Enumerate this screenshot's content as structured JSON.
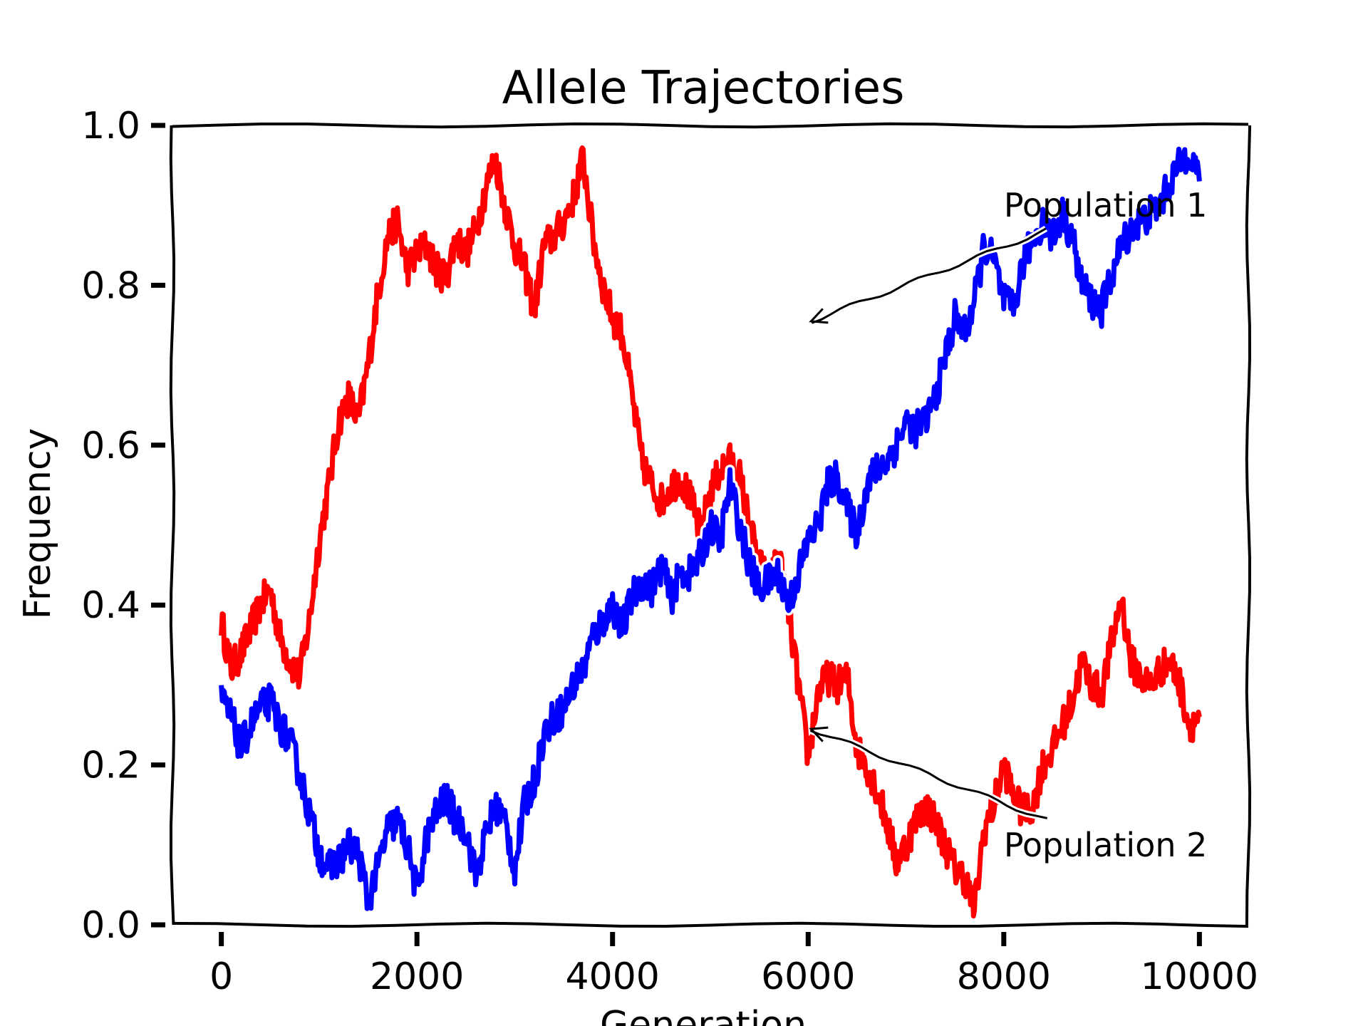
{
  "chart_data": {
    "type": "line",
    "title": "Allele Trajectories",
    "xlabel": "Generation",
    "ylabel": "Frequency",
    "xlim": [
      -500,
      10500
    ],
    "ylim": [
      0.0,
      1.0
    ],
    "xticks": [
      0,
      2000,
      4000,
      6000,
      8000,
      10000
    ],
    "xtick_labels": [
      "0",
      "2000",
      "4000",
      "6000",
      "8000",
      "10000"
    ],
    "yticks": [
      0.0,
      0.2,
      0.4,
      0.6,
      0.8,
      1.0
    ],
    "ytick_labels": [
      "0.0",
      "0.2",
      "0.4",
      "0.6",
      "0.8",
      "1.0"
    ],
    "grid": false,
    "style": "xkcd",
    "series": [
      {
        "color": "#ff0000",
        "x": [
          0,
          100,
          200,
          300,
          400,
          500,
          600,
          700,
          800,
          900,
          1000,
          1100,
          1200,
          1300,
          1400,
          1500,
          1600,
          1700,
          1800,
          1900,
          2000,
          2100,
          2200,
          2300,
          2400,
          2500,
          2600,
          2700,
          2800,
          2900,
          3000,
          3100,
          3200,
          3300,
          3400,
          3500,
          3600,
          3700,
          3800,
          3900,
          4000,
          4100,
          4200,
          4300,
          4400,
          4500,
          4600,
          4700,
          4800,
          4900,
          5000,
          5100,
          5200,
          5300,
          5400,
          5500,
          5600,
          5700,
          5800,
          5900,
          6000,
          6100,
          6200,
          6300,
          6400,
          6500,
          6600,
          6700,
          6800,
          6900,
          7000,
          7100,
          7200,
          7300,
          7400,
          7500,
          7600,
          7700,
          7800,
          7900,
          8000,
          8100,
          8200,
          8300,
          8400,
          8500,
          8600,
          8700,
          8800,
          8900,
          9000,
          9100,
          9200,
          9300,
          9400,
          9500,
          9600,
          9700,
          9800,
          9900,
          10000
        ],
        "values": [
          0.38,
          0.32,
          0.34,
          0.37,
          0.4,
          0.42,
          0.36,
          0.33,
          0.31,
          0.38,
          0.48,
          0.55,
          0.63,
          0.66,
          0.63,
          0.7,
          0.79,
          0.86,
          0.88,
          0.82,
          0.84,
          0.85,
          0.82,
          0.81,
          0.86,
          0.84,
          0.87,
          0.92,
          0.96,
          0.9,
          0.85,
          0.82,
          0.77,
          0.85,
          0.86,
          0.88,
          0.91,
          0.96,
          0.86,
          0.8,
          0.76,
          0.74,
          0.66,
          0.58,
          0.55,
          0.53,
          0.55,
          0.56,
          0.53,
          0.49,
          0.54,
          0.57,
          0.58,
          0.56,
          0.5,
          0.45,
          0.43,
          0.46,
          0.39,
          0.3,
          0.21,
          0.29,
          0.31,
          0.3,
          0.31,
          0.22,
          0.2,
          0.17,
          0.13,
          0.08,
          0.1,
          0.13,
          0.15,
          0.13,
          0.1,
          0.07,
          0.06,
          0.02,
          0.12,
          0.15,
          0.2,
          0.16,
          0.14,
          0.15,
          0.2,
          0.22,
          0.25,
          0.28,
          0.33,
          0.3,
          0.29,
          0.35,
          0.41,
          0.33,
          0.31,
          0.3,
          0.32,
          0.33,
          0.3,
          0.25,
          0.26
        ]
      },
      {
        "color": "#0000ff",
        "x": [
          0,
          100,
          200,
          300,
          400,
          500,
          600,
          700,
          800,
          900,
          1000,
          1100,
          1200,
          1300,
          1400,
          1500,
          1600,
          1700,
          1800,
          1900,
          2000,
          2100,
          2200,
          2300,
          2400,
          2500,
          2600,
          2700,
          2800,
          2900,
          3000,
          3100,
          3200,
          3300,
          3400,
          3500,
          3600,
          3700,
          3800,
          3900,
          4000,
          4100,
          4200,
          4300,
          4400,
          4500,
          4600,
          4700,
          4800,
          4900,
          5000,
          5100,
          5200,
          5300,
          5400,
          5500,
          5600,
          5700,
          5800,
          5900,
          6000,
          6100,
          6200,
          6300,
          6400,
          6500,
          6600,
          6700,
          6800,
          6900,
          7000,
          7100,
          7200,
          7300,
          7400,
          7500,
          7600,
          7700,
          7800,
          7900,
          8000,
          8100,
          8200,
          8300,
          8400,
          8500,
          8600,
          8700,
          8800,
          8900,
          9000,
          9100,
          9200,
          9300,
          9400,
          9500,
          9600,
          9700,
          9800,
          9900,
          10000
        ],
        "values": [
          0.28,
          0.26,
          0.22,
          0.25,
          0.27,
          0.28,
          0.25,
          0.23,
          0.19,
          0.14,
          0.09,
          0.07,
          0.08,
          0.1,
          0.09,
          0.03,
          0.07,
          0.12,
          0.13,
          0.1,
          0.04,
          0.11,
          0.14,
          0.16,
          0.13,
          0.12,
          0.06,
          0.11,
          0.15,
          0.13,
          0.07,
          0.15,
          0.18,
          0.24,
          0.26,
          0.27,
          0.3,
          0.32,
          0.36,
          0.38,
          0.4,
          0.37,
          0.41,
          0.43,
          0.42,
          0.45,
          0.41,
          0.44,
          0.44,
          0.46,
          0.5,
          0.48,
          0.55,
          0.5,
          0.45,
          0.42,
          0.43,
          0.44,
          0.4,
          0.44,
          0.48,
          0.5,
          0.55,
          0.56,
          0.52,
          0.49,
          0.55,
          0.57,
          0.58,
          0.6,
          0.63,
          0.62,
          0.63,
          0.66,
          0.71,
          0.76,
          0.74,
          0.78,
          0.85,
          0.83,
          0.78,
          0.77,
          0.83,
          0.86,
          0.88,
          0.86,
          0.89,
          0.86,
          0.8,
          0.78,
          0.77,
          0.81,
          0.85,
          0.87,
          0.88,
          0.89,
          0.9,
          0.93,
          0.95,
          0.97,
          0.93
        ]
      }
    ],
    "annotations": [
      {
        "text": "Population 1",
        "xytext": [
          8000,
          0.9
        ],
        "xy": [
          6030,
          0.755
        ]
      },
      {
        "text": "Population 2",
        "xytext": [
          8000,
          0.1
        ],
        "xy": [
          6030,
          0.245
        ]
      }
    ]
  }
}
